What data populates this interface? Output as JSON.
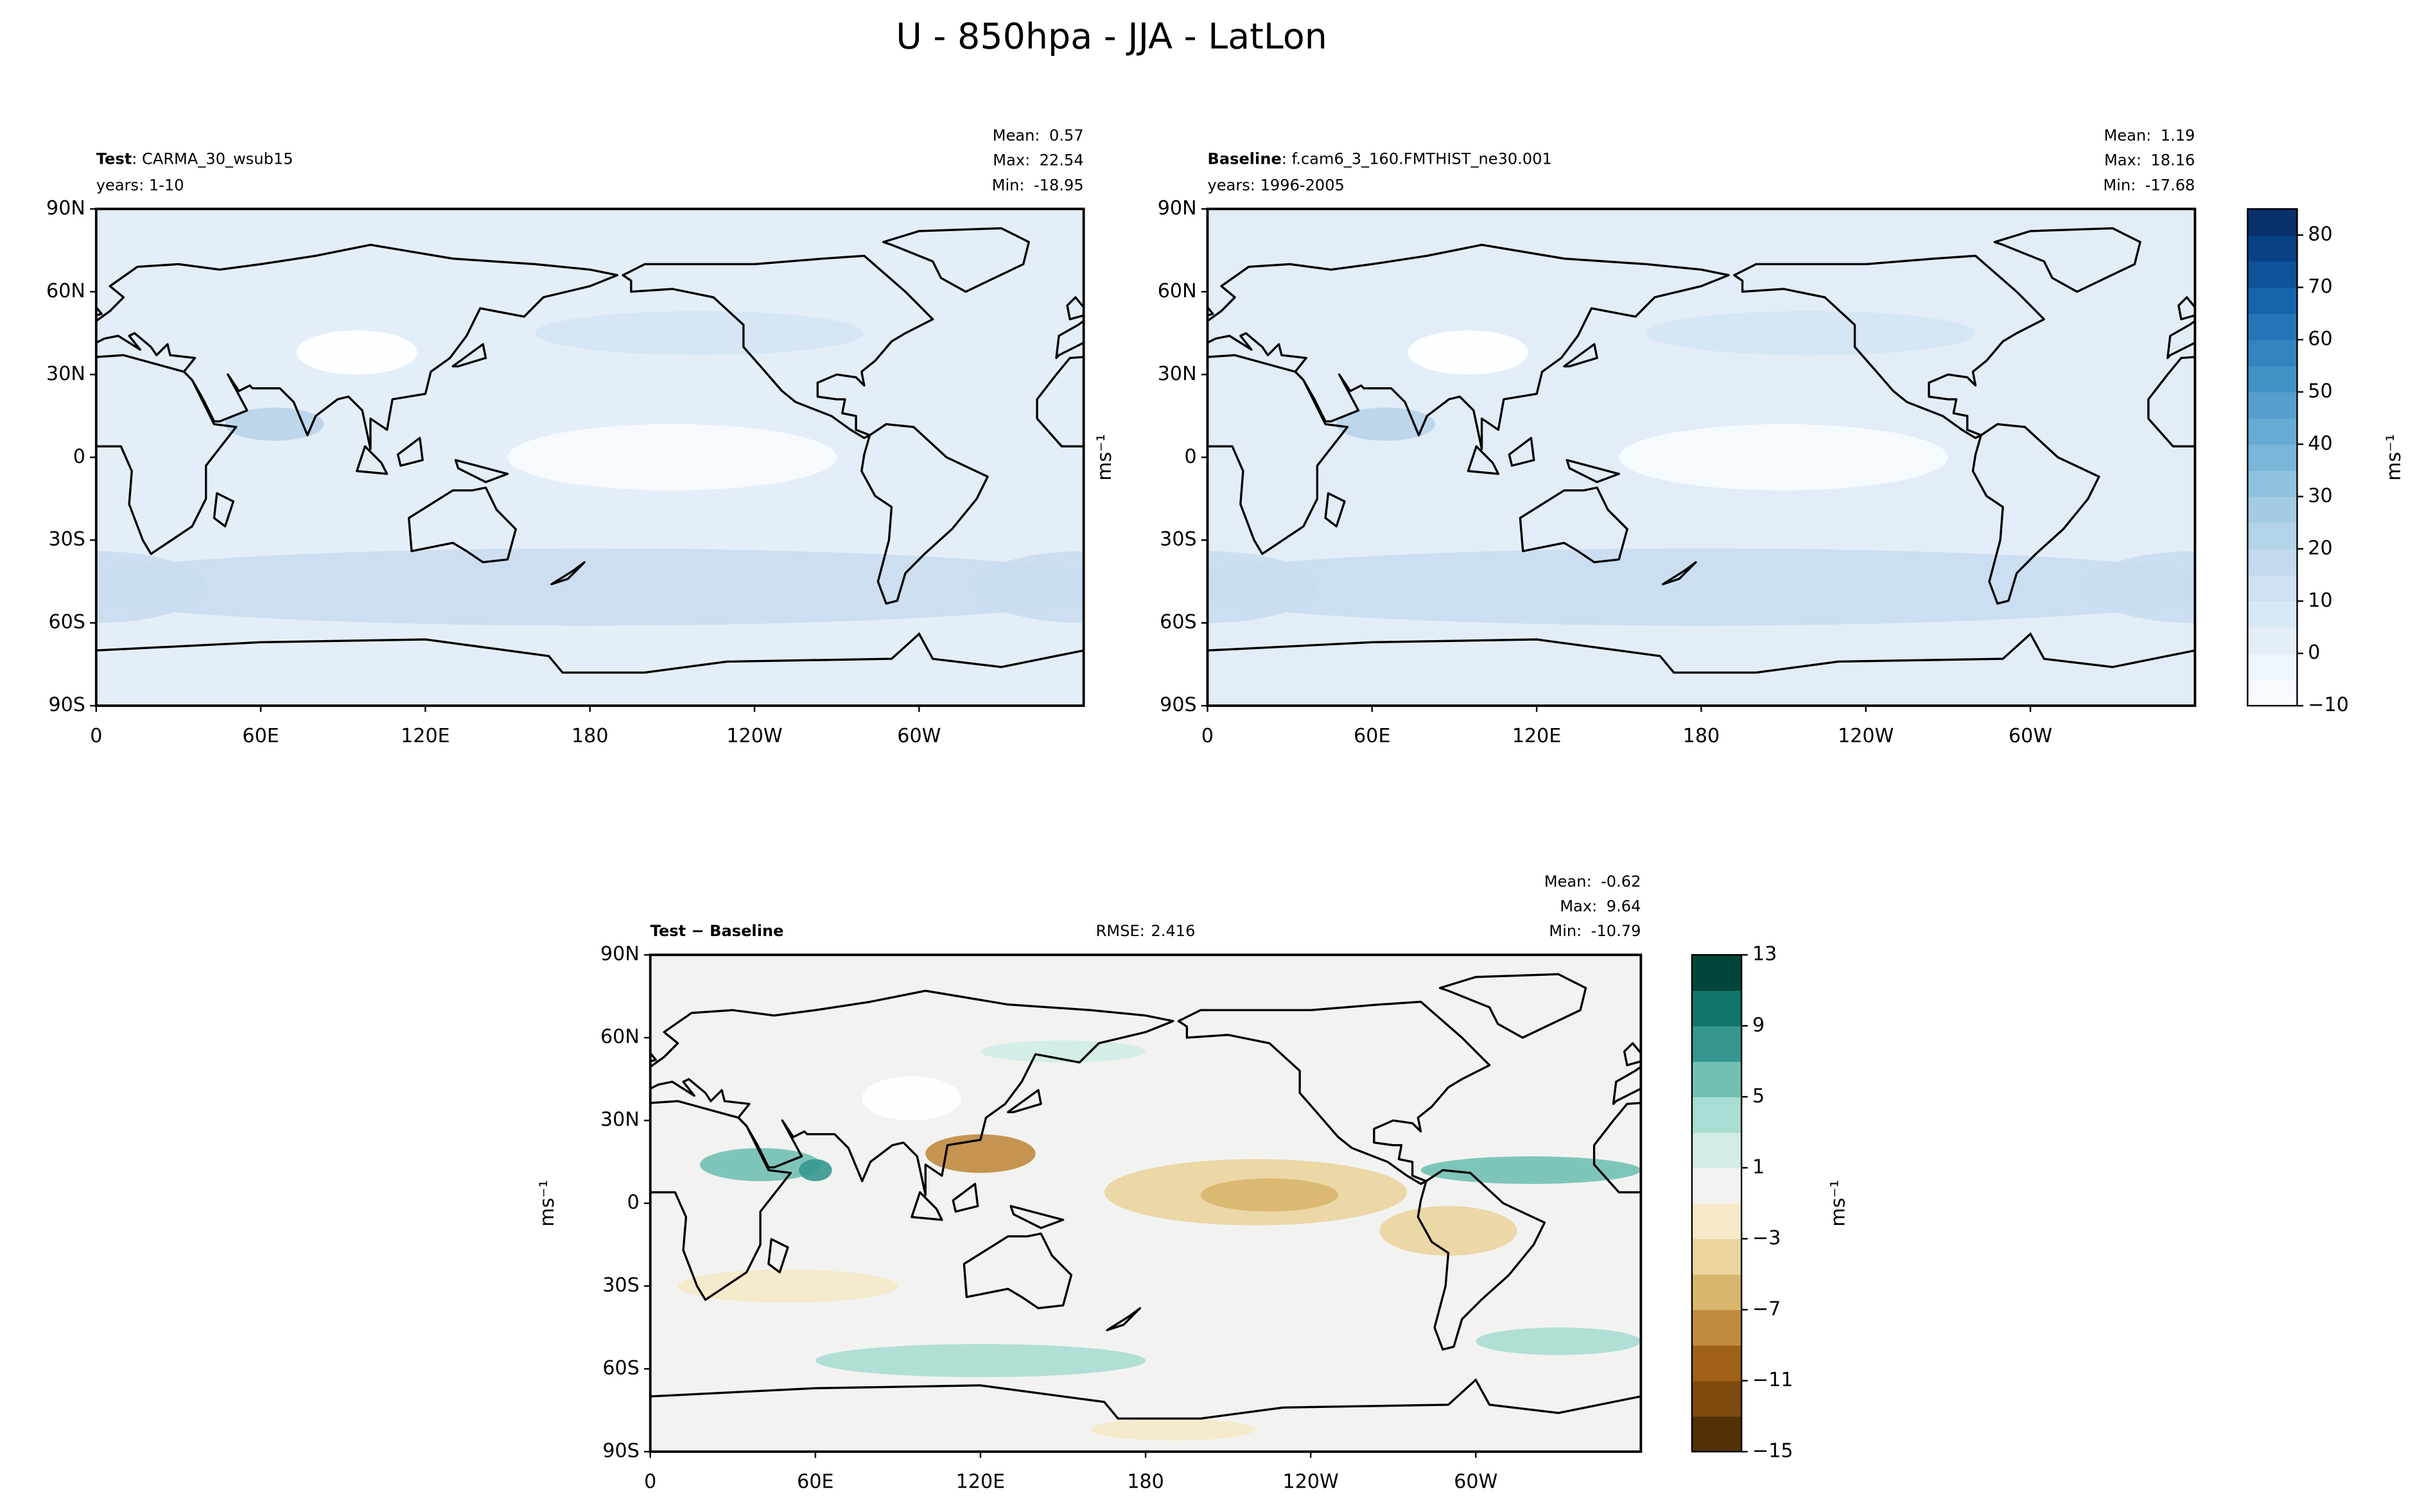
{
  "figure": {
    "title": "U - 850hpa - JJA - LatLon"
  },
  "chart_data": [
    {
      "type": "map",
      "name": "Test",
      "case": ": CARMA_30_wsub15",
      "years": "years: 1-10",
      "stats": [
        {
          "label": "Mean:",
          "value": 0.57
        },
        {
          "label": "Max:",
          "value": 22.54
        },
        {
          "label": "Min:",
          "value": -18.95
        }
      ],
      "xlim": [
        0,
        360
      ],
      "ylim": [
        -90,
        90
      ],
      "xticks": [
        0,
        {
          "value": 60,
          "label": "60E"
        },
        {
          "value": 120,
          "label": "120E"
        },
        180,
        {
          "value": 240,
          "label": "120W"
        },
        {
          "value": 300,
          "label": "60W"
        }
      ],
      "yticks": [
        {
          "value": -90,
          "label": "90S"
        },
        {
          "value": -60,
          "label": "60S"
        },
        {
          "value": -30,
          "label": "30S"
        },
        0,
        {
          "value": 30,
          "label": "30N"
        },
        {
          "value": 60,
          "label": "60N"
        },
        {
          "value": 90,
          "label": "90N"
        }
      ]
    },
    {
      "type": "map",
      "name": "Baseline",
      "case": ": f.cam6_3_160.FMTHIST_ne30.001",
      "years": "years: 1996-2005",
      "stats": [
        {
          "label": "Mean:",
          "value": 1.19
        },
        {
          "label": "Max:",
          "value": 18.16
        },
        {
          "label": "Min:",
          "value": -17.68
        }
      ],
      "ylabel": "ms⁻¹",
      "xlim": [
        0,
        360
      ],
      "ylim": [
        -90,
        90
      ],
      "xticks": [
        0,
        {
          "value": 60,
          "label": "60E"
        },
        {
          "value": 120,
          "label": "120E"
        },
        180,
        {
          "value": 240,
          "label": "120W"
        },
        {
          "value": 300,
          "label": "60W"
        }
      ],
      "yticks": [
        {
          "value": -90,
          "label": "90S"
        },
        {
          "value": -60,
          "label": "60S"
        },
        {
          "value": -30,
          "label": "30S"
        },
        0,
        {
          "value": 30,
          "label": "30N"
        },
        {
          "value": 60,
          "label": "60N"
        },
        {
          "value": 90,
          "label": "90N"
        }
      ],
      "colorbar": {
        "label": "ms⁻¹",
        "clim": [
          -10,
          85
        ],
        "ticks": [
          {
            "value": -10,
            "label": "−10"
          },
          0,
          10,
          20,
          30,
          40,
          50,
          60,
          70,
          80
        ],
        "colors": [
          "#f7fbff",
          "#eef5fc",
          "#e3eef9",
          "#d9e8f5",
          "#cfe1f2",
          "#c2d9ee",
          "#b3d3e8",
          "#a3cce3",
          "#8fc2de",
          "#7ab6d9",
          "#66abd4",
          "#549fcd",
          "#4292c6",
          "#3383be",
          "#2474b7",
          "#1764ab",
          "#0d539a",
          "#084184",
          "#08306b"
        ]
      }
    },
    {
      "type": "map",
      "name": "Test − Baseline",
      "rmse": {
        "label": "RMSE:",
        "value": 2.416
      },
      "stats": [
        {
          "label": "Mean:",
          "value": -0.62
        },
        {
          "label": "Max:",
          "value": 9.64
        },
        {
          "label": "Min:",
          "value": -10.79
        }
      ],
      "ylabel": "ms⁻¹",
      "xlim": [
        0,
        360
      ],
      "ylim": [
        -90,
        90
      ],
      "xticks": [
        0,
        {
          "value": 60,
          "label": "60E"
        },
        {
          "value": 120,
          "label": "120E"
        },
        180,
        {
          "value": 240,
          "label": "120W"
        },
        {
          "value": 300,
          "label": "60W"
        }
      ],
      "yticks": [
        {
          "value": -90,
          "label": "90S"
        },
        {
          "value": -60,
          "label": "60S"
        },
        {
          "value": -30,
          "label": "30S"
        },
        0,
        {
          "value": 30,
          "label": "30N"
        },
        {
          "value": 60,
          "label": "60N"
        },
        {
          "value": 90,
          "label": "90N"
        }
      ],
      "colorbar": {
        "label": "ms⁻¹",
        "clim": [
          -15,
          13
        ],
        "ticks": [
          {
            "value": -15,
            "label": "−15"
          },
          {
            "value": -11,
            "label": "−11"
          },
          {
            "value": -7,
            "label": "−7"
          },
          {
            "value": -3,
            "label": "−3"
          },
          1,
          5,
          9,
          13
        ],
        "colors": [
          "#543005",
          "#7d4b0c",
          "#9f6118",
          "#c08a3f",
          "#d9b66d",
          "#ebd49f",
          "#f6e9c8",
          "#f2f3f1",
          "#d2ece7",
          "#a9ddd3",
          "#71c0b3",
          "#35978f",
          "#0f756b",
          "#01463b"
        ]
      }
    }
  ]
}
